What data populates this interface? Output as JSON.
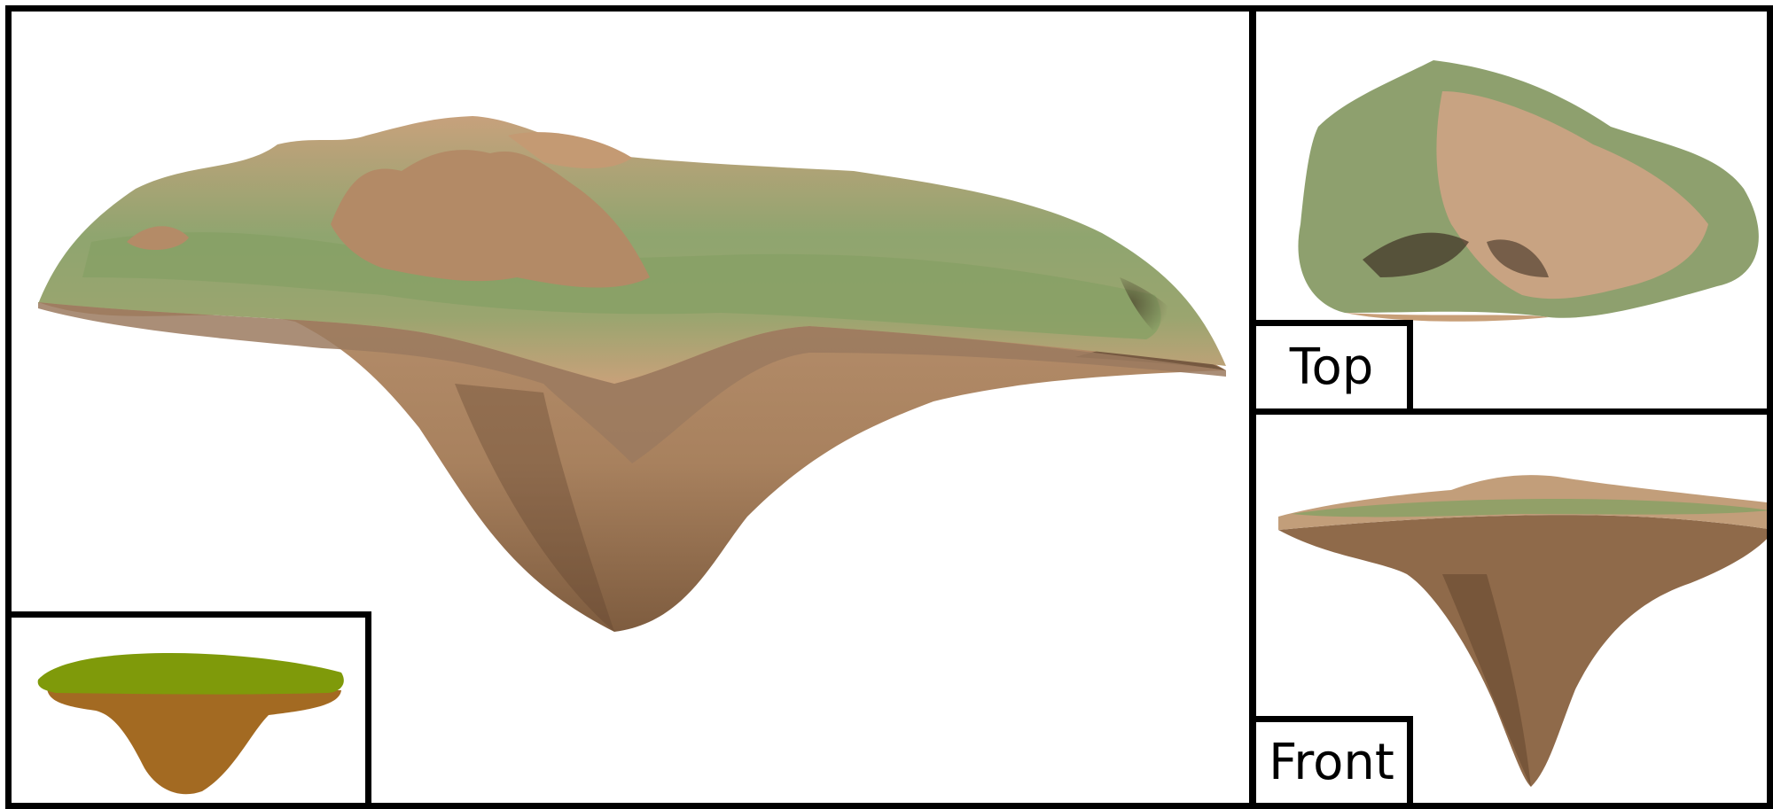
{
  "views": {
    "top_label": "Top",
    "front_label": "Front"
  },
  "colors": {
    "grass": "#7f9a63",
    "soil_light": "#c9a07a",
    "soil_dark": "#6e5037",
    "sketch_grass": "#7f9a0a",
    "sketch_soil": "#a36a22"
  }
}
